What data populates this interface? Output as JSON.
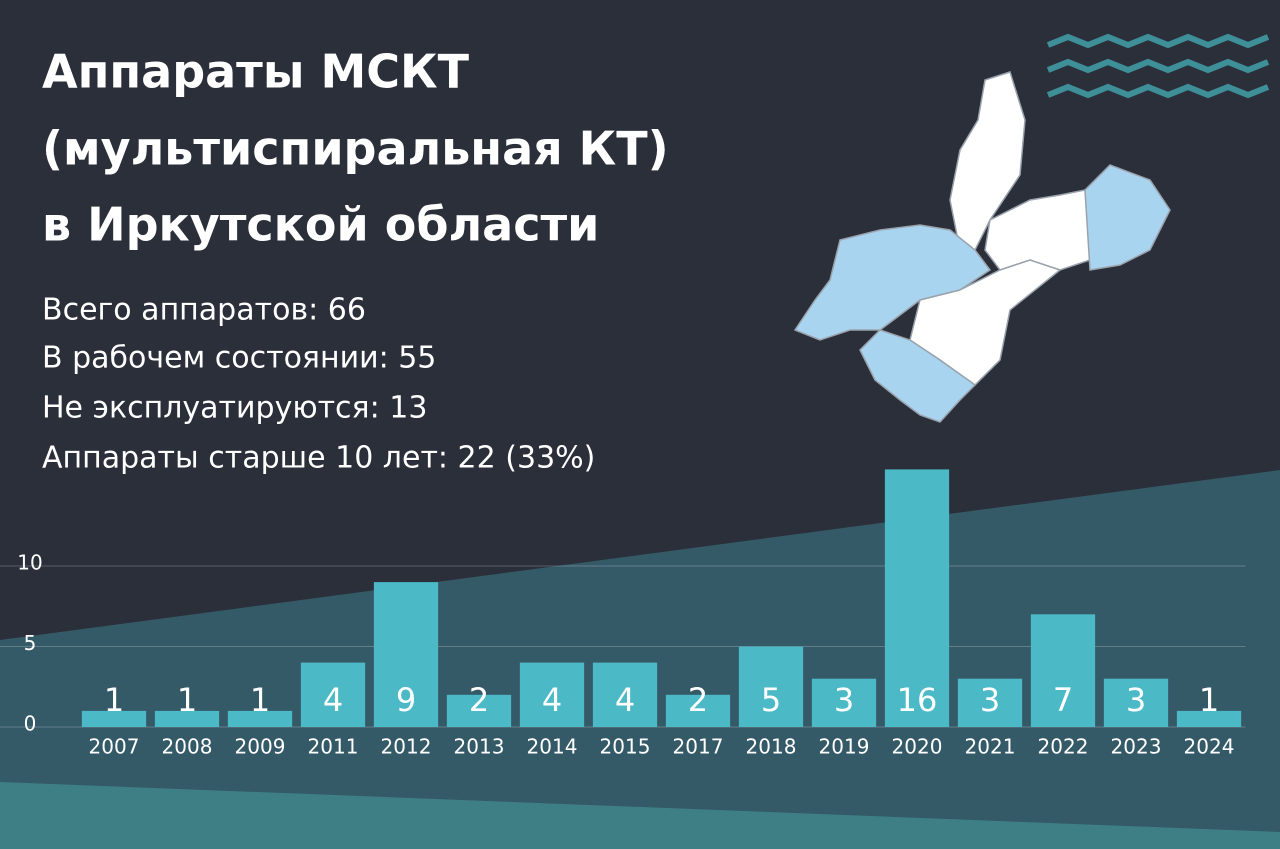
{
  "header": {
    "title": [
      "Аппараты МСКТ",
      "(мультиспиральная КТ)",
      "в Иркутской области"
    ],
    "stats": [
      "Всего аппаратов: 66",
      "В рабочем состоянии: 55",
      "Не эксплуатируются: 13",
      "Аппараты старше 10 лет: 22 (33%)"
    ]
  },
  "chart_data": {
    "type": "bar",
    "categories": [
      "2007",
      "2008",
      "2009",
      "2011",
      "2012",
      "2013",
      "2014",
      "2015",
      "2017",
      "2018",
      "2019",
      "2020",
      "2021",
      "2022",
      "2023",
      "2024"
    ],
    "values": [
      1,
      1,
      1,
      4,
      9,
      2,
      4,
      4,
      2,
      5,
      3,
      16,
      3,
      7,
      3,
      1
    ],
    "color": "#4cbac6",
    "ylim": [
      0,
      20
    ],
    "yticks": [
      0,
      5,
      10
    ],
    "grid": true
  }
}
